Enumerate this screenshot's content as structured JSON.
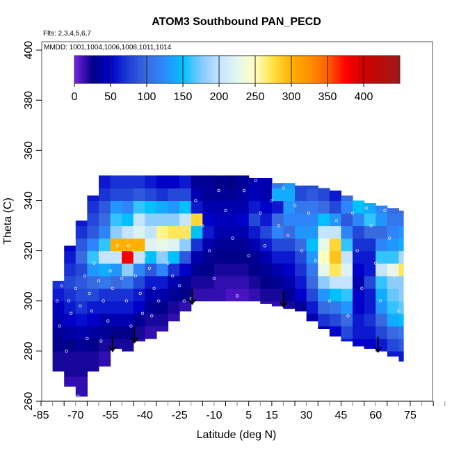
{
  "chart_data": {
    "type": "heatmap",
    "title": "ATOM3 Southbound PAN_PECD",
    "subtitle_flights": "Flts: 2,3,4,5,6,7",
    "subtitle_dates": "MMDD: 1001,1004,1006,1008,1011,1014",
    "xlabel": "Latitude (deg N)",
    "ylabel": "Theta (C)",
    "xlim": [
      -85,
      95
    ],
    "ylim": [
      260,
      404
    ],
    "x_ticks": [
      "-85",
      "-70",
      "-55",
      "-40",
      "-25",
      "-10",
      "5",
      "15",
      "30",
      "45",
      "60",
      "75"
    ],
    "y_ticks": [
      "260",
      "280",
      "300",
      "320",
      "340",
      "360",
      "380",
      "400"
    ],
    "colorbar": {
      "range": [
        0,
        450
      ],
      "ticks": [
        "0",
        "50",
        "100",
        "150",
        "200",
        "250",
        "300",
        "350",
        "400"
      ],
      "placement": "top",
      "stops": [
        [
          0,
          "#7a22e6"
        ],
        [
          25,
          "#000088"
        ],
        [
          50,
          "#0000c8"
        ],
        [
          75,
          "#1f3fd6"
        ],
        [
          100,
          "#3a6ae0"
        ],
        [
          125,
          "#2a8cff"
        ],
        [
          150,
          "#00c0ff"
        ],
        [
          175,
          "#80c8ff"
        ],
        [
          200,
          "#c4e4ff"
        ],
        [
          225,
          "#e4f6f0"
        ],
        [
          250,
          "#ffffc0"
        ],
        [
          275,
          "#ffe040"
        ],
        [
          300,
          "#ffb000"
        ],
        [
          325,
          "#ff9000"
        ],
        [
          350,
          "#ff6000"
        ],
        [
          375,
          "#ff0000"
        ],
        [
          400,
          "#d00000"
        ],
        [
          450,
          "#a01818"
        ]
      ]
    },
    "grid_note_units": "columns: [lat_start, lat_width, theta_bottom, theta_top, first_row_theta, values per 5 K row]",
    "columns": [
      [
        -80,
        5,
        272,
        308,
        270,
        [
          20,
          20,
          25,
          30,
          40,
          45,
          60,
          70
        ]
      ],
      [
        -75,
        5,
        266,
        322,
        265,
        [
          15,
          20,
          20,
          25,
          35,
          50,
          60,
          70,
          80,
          70,
          60,
          50
        ]
      ],
      [
        -70,
        5,
        262,
        332,
        260,
        [
          15,
          15,
          20,
          20,
          30,
          40,
          55,
          70,
          80,
          90,
          80,
          100,
          90,
          70,
          60
        ]
      ],
      [
        -65,
        5,
        272,
        342,
        270,
        [
          20,
          20,
          25,
          35,
          50,
          60,
          80,
          100,
          130,
          160,
          120,
          90,
          80,
          70,
          60
        ]
      ],
      [
        -60,
        5,
        274,
        350,
        270,
        [
          15,
          15,
          20,
          30,
          40,
          60,
          70,
          110,
          140,
          200,
          160,
          120,
          100,
          90,
          70,
          60
        ]
      ],
      [
        -55,
        5,
        281,
        352,
        280,
        [
          20,
          25,
          40,
          60,
          70,
          100,
          130,
          200,
          300,
          180,
          160,
          130,
          80,
          70
        ]
      ],
      [
        -50,
        5,
        280,
        350,
        275,
        [
          15,
          20,
          25,
          40,
          60,
          70,
          110,
          180,
          380,
          300,
          200,
          150,
          120,
          80,
          70
        ]
      ],
      [
        -45,
        5,
        284,
        350,
        280,
        [
          15,
          20,
          30,
          50,
          60,
          80,
          120,
          200,
          300,
          220,
          200,
          160,
          90,
          70
        ]
      ],
      [
        -40,
        5,
        285,
        350,
        285,
        [
          15,
          20,
          30,
          40,
          60,
          90,
          150,
          220,
          200,
          180,
          150,
          80,
          60
        ]
      ],
      [
        -35,
        5,
        288,
        350,
        285,
        [
          15,
          20,
          25,
          40,
          60,
          120,
          180,
          230,
          260,
          180,
          140,
          70,
          50
        ]
      ],
      [
        -30,
        5,
        292,
        350,
        290,
        [
          15,
          20,
          30,
          40,
          70,
          150,
          220,
          270,
          180,
          130,
          80,
          50
        ]
      ],
      [
        -25,
        5,
        296,
        350,
        295,
        [
          15,
          25,
          30,
          50,
          90,
          180,
          270,
          200,
          150,
          80,
          60
        ]
      ],
      [
        -20,
        5,
        300,
        350,
        300,
        [
          15,
          20,
          30,
          40,
          70,
          150,
          280,
          60,
          40,
          30
        ]
      ],
      [
        -15,
        5,
        300,
        350,
        300,
        [
          15,
          20,
          25,
          30,
          40,
          60,
          50,
          40,
          30,
          30
        ]
      ],
      [
        -10,
        5,
        300,
        350,
        300,
        [
          15,
          15,
          20,
          25,
          30,
          40,
          45,
          40,
          30,
          25
        ]
      ],
      [
        -5,
        5,
        300,
        350,
        300,
        [
          10,
          15,
          20,
          25,
          30,
          40,
          45,
          40,
          30,
          25
        ]
      ],
      [
        0,
        5,
        300,
        350,
        300,
        [
          10,
          15,
          20,
          25,
          30,
          40,
          50,
          40,
          35,
          30
        ]
      ],
      [
        5,
        5,
        300,
        349,
        300,
        [
          15,
          20,
          25,
          30,
          40,
          60,
          80,
          60,
          45,
          40
        ]
      ],
      [
        10,
        5,
        299,
        349,
        295,
        [
          15,
          20,
          25,
          30,
          40,
          60,
          80,
          60,
          50,
          40,
          40
        ]
      ],
      [
        15,
        5,
        298,
        347,
        295,
        [
          15,
          20,
          30,
          40,
          60,
          80,
          120,
          100,
          60,
          140,
          110
        ]
      ],
      [
        20,
        5,
        297,
        347,
        295,
        [
          20,
          30,
          40,
          50,
          60,
          80,
          100,
          120,
          130,
          140,
          130
        ]
      ],
      [
        25,
        5,
        296,
        346,
        295,
        [
          30,
          50,
          60,
          70,
          80,
          100,
          130,
          120,
          110,
          80,
          80
        ]
      ],
      [
        30,
        5,
        292,
        346,
        290,
        [
          40,
          60,
          80,
          100,
          110,
          130,
          150,
          130,
          120,
          110,
          90,
          80
        ]
      ],
      [
        35,
        5,
        289,
        345,
        285,
        [
          40,
          70,
          100,
          130,
          180,
          230,
          250,
          230,
          200,
          150,
          100,
          80
        ]
      ],
      [
        40,
        5,
        286,
        344,
        285,
        [
          50,
          80,
          110,
          150,
          200,
          270,
          290,
          280,
          200,
          130,
          80,
          60
        ]
      ],
      [
        45,
        5,
        284,
        342,
        280,
        [
          60,
          80,
          100,
          130,
          160,
          200,
          220,
          200,
          160,
          120,
          90,
          120,
          100
        ]
      ],
      [
        50,
        5,
        282,
        340,
        280,
        [
          50,
          60,
          60,
          50,
          50,
          40,
          50,
          60,
          70,
          80,
          120,
          150,
          130
        ]
      ],
      [
        55,
        5,
        281,
        339,
        280,
        [
          50,
          60,
          70,
          60,
          60,
          80,
          60,
          60,
          70,
          100,
          160,
          140
        ]
      ],
      [
        60,
        5,
        280,
        338,
        280,
        [
          60,
          80,
          100,
          130,
          140,
          160,
          200,
          160,
          120,
          100,
          130,
          120
        ]
      ],
      [
        65,
        5,
        278,
        337,
        275,
        [
          60,
          80,
          100,
          140,
          160,
          170,
          180,
          230,
          160,
          130,
          120,
          110,
          100
        ]
      ],
      [
        70,
        2,
        276,
        336,
        275,
        [
          60,
          90,
          110,
          150,
          170,
          180,
          180,
          270,
          190,
          140,
          130,
          110,
          100
        ]
      ]
    ],
    "arrows": [
      [
        -54,
        280
      ],
      [
        -44.5,
        283.5
      ],
      [
        -19.5,
        298.8
      ],
      [
        20,
        297.7
      ],
      [
        61,
        279.7
      ]
    ],
    "sample_points": [
      [
        -76,
        306
      ],
      [
        -78,
        300
      ],
      [
        -77,
        290
      ],
      [
        -73,
        300
      ],
      [
        -72,
        295
      ],
      [
        -70,
        305
      ],
      [
        -68,
        298
      ],
      [
        -66,
        310
      ],
      [
        -64,
        303
      ],
      [
        -63,
        296
      ],
      [
        -62,
        315
      ],
      [
        -60,
        308
      ],
      [
        -58,
        300
      ],
      [
        -57,
        318
      ],
      [
        -55,
        312
      ],
      [
        -54,
        305
      ],
      [
        -52,
        322
      ],
      [
        -51,
        316
      ],
      [
        -50,
        309
      ],
      [
        -48,
        300
      ],
      [
        -47,
        322
      ],
      [
        -45,
        320
      ],
      [
        -44,
        310
      ],
      [
        -42,
        303
      ],
      [
        -41,
        295
      ],
      [
        -40,
        318
      ],
      [
        -38,
        313
      ],
      [
        -36,
        305
      ],
      [
        -34,
        300
      ],
      [
        -33,
        320
      ],
      [
        -30,
        315
      ],
      [
        -28,
        310
      ],
      [
        -25,
        306
      ],
      [
        -22,
        325
      ],
      [
        -20,
        301
      ],
      [
        -18,
        340
      ],
      [
        -15,
        330
      ],
      [
        -12,
        320
      ],
      [
        -10,
        309
      ],
      [
        -8,
        344
      ],
      [
        -5,
        336
      ],
      [
        -2,
        325
      ],
      [
        0,
        302
      ],
      [
        3,
        344
      ],
      [
        5,
        318
      ],
      [
        8,
        348
      ],
      [
        10,
        335
      ],
      [
        12,
        322
      ],
      [
        15,
        340
      ],
      [
        18,
        330
      ],
      [
        20,
        345
      ],
      [
        22,
        326
      ],
      [
        25,
        338
      ],
      [
        28,
        320
      ],
      [
        31,
        335
      ],
      [
        34,
        316
      ],
      [
        37,
        328
      ],
      [
        40,
        300
      ],
      [
        43,
        332
      ],
      [
        46,
        310
      ],
      [
        48,
        294
      ],
      [
        50,
        335
      ],
      [
        52,
        320
      ],
      [
        54,
        305
      ],
      [
        56,
        337
      ],
      [
        58,
        330
      ],
      [
        60,
        315
      ],
      [
        62,
        300
      ],
      [
        64,
        336
      ],
      [
        66,
        325
      ],
      [
        68,
        310
      ],
      [
        70,
        296
      ],
      [
        -69,
        262
      ],
      [
        -74,
        280
      ],
      [
        -65,
        285
      ],
      [
        -59,
        284
      ],
      [
        -56,
        292
      ],
      [
        -46,
        290
      ],
      [
        -37,
        294
      ],
      [
        -23,
        300
      ]
    ]
  }
}
